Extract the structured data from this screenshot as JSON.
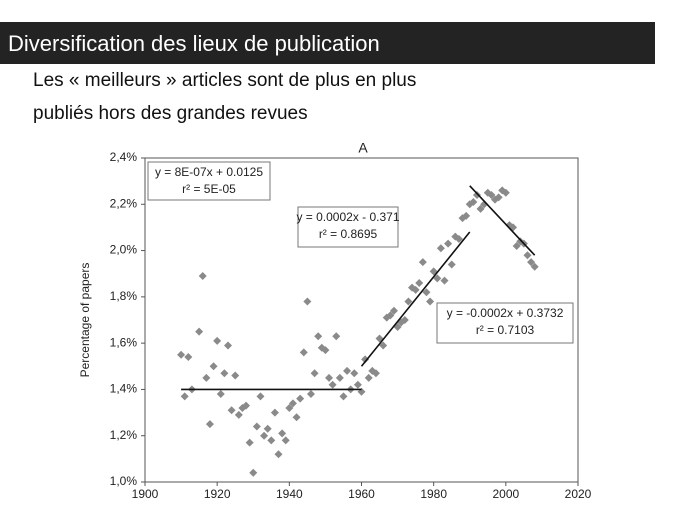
{
  "slide": {
    "title": "Diversification des lieux de publication",
    "subtitle_lines": [
      "Les « meilleurs » articles sont de plus en plus",
      "publiés hors des grandes revues"
    ]
  },
  "chart_data": {
    "type": "scatter",
    "title": "A",
    "y_label": "Percentage of papers",
    "color": "#8a8a8a",
    "x": [
      1910,
      1911,
      1912,
      1913,
      1915,
      1916,
      1917,
      1918,
      1919,
      1920,
      1921,
      1922,
      1923,
      1924,
      1925,
      1926,
      1927,
      1928,
      1929,
      1930,
      1931,
      1932,
      1933,
      1934,
      1935,
      1936,
      1937,
      1938,
      1939,
      1940,
      1941,
      1942,
      1943,
      1944,
      1945,
      1946,
      1947,
      1948,
      1949,
      1950,
      1951,
      1952,
      1953,
      1954,
      1955,
      1956,
      1957,
      1958,
      1959,
      1960,
      1961,
      1962,
      1963,
      1964,
      1965,
      1966,
      1967,
      1968,
      1969,
      1970,
      1971,
      1972,
      1973,
      1974,
      1975,
      1976,
      1977,
      1978,
      1979,
      1980,
      1981,
      1982,
      1983,
      1984,
      1985,
      1986,
      1987,
      1988,
      1989,
      1990,
      1991,
      1992,
      1993,
      1994,
      1995,
      1996,
      1997,
      1998,
      1999,
      2000,
      2001,
      2002,
      2003,
      2004,
      2005,
      2006,
      2007,
      2008
    ],
    "values": [
      1.55,
      1.37,
      1.54,
      1.4,
      1.65,
      1.89,
      1.45,
      1.25,
      1.5,
      1.61,
      1.38,
      1.47,
      1.59,
      1.31,
      1.46,
      1.29,
      1.32,
      1.33,
      1.17,
      1.04,
      1.24,
      1.37,
      1.2,
      1.23,
      1.18,
      1.3,
      1.12,
      1.21,
      1.18,
      1.32,
      1.34,
      1.28,
      1.36,
      1.56,
      1.78,
      1.38,
      1.47,
      1.63,
      1.58,
      1.57,
      1.45,
      1.42,
      1.63,
      1.45,
      1.37,
      1.48,
      1.4,
      1.47,
      1.42,
      1.39,
      1.53,
      1.45,
      1.48,
      1.47,
      1.62,
      1.59,
      1.71,
      1.72,
      1.74,
      1.67,
      1.69,
      1.7,
      1.78,
      1.84,
      1.83,
      1.86,
      1.95,
      1.82,
      1.78,
      1.91,
      1.88,
      2.01,
      1.87,
      2.03,
      1.94,
      2.06,
      2.05,
      2.14,
      2.15,
      2.2,
      2.21,
      2.24,
      2.18,
      2.2,
      2.25,
      2.24,
      2.22,
      2.23,
      2.26,
      2.25,
      2.11,
      2.1,
      2.02,
      2.04,
      2.03,
      1.98,
      1.95,
      1.93
    ],
    "trendlines": [
      {
        "x": [
          1910,
          1960
        ],
        "y": [
          1.4,
          1.4
        ],
        "equation": "y = 8E-07x + 0.0125",
        "r2": "r² = 5E-05"
      },
      {
        "x": [
          1960,
          1990
        ],
        "y": [
          1.5,
          2.08
        ],
        "equation": "y = 0.0002x - 0.371",
        "r2": "r² = 0.8695"
      },
      {
        "x": [
          1990,
          2008
        ],
        "y": [
          2.28,
          1.98
        ],
        "equation": "y = -0.0002x + 0.3732",
        "r2": "r² = 0.7103"
      }
    ],
    "xlim": [
      1900,
      2020
    ],
    "xticks": [
      1900,
      1920,
      1940,
      1960,
      1980,
      2000,
      2020
    ],
    "ylim": [
      1.0,
      2.4
    ],
    "yticks": [
      {
        "value": 1.0,
        "label": "1,0%"
      },
      {
        "value": 1.2,
        "label": "1,2%"
      },
      {
        "value": 1.4,
        "label": "1,4%"
      },
      {
        "value": 1.6,
        "label": "1,6%"
      },
      {
        "value": 1.8,
        "label": "1,8%"
      },
      {
        "value": 2.0,
        "label": "2,0%"
      },
      {
        "value": 2.2,
        "label": "2,2%"
      },
      {
        "value": 2.4,
        "label": "2,4%"
      }
    ]
  }
}
